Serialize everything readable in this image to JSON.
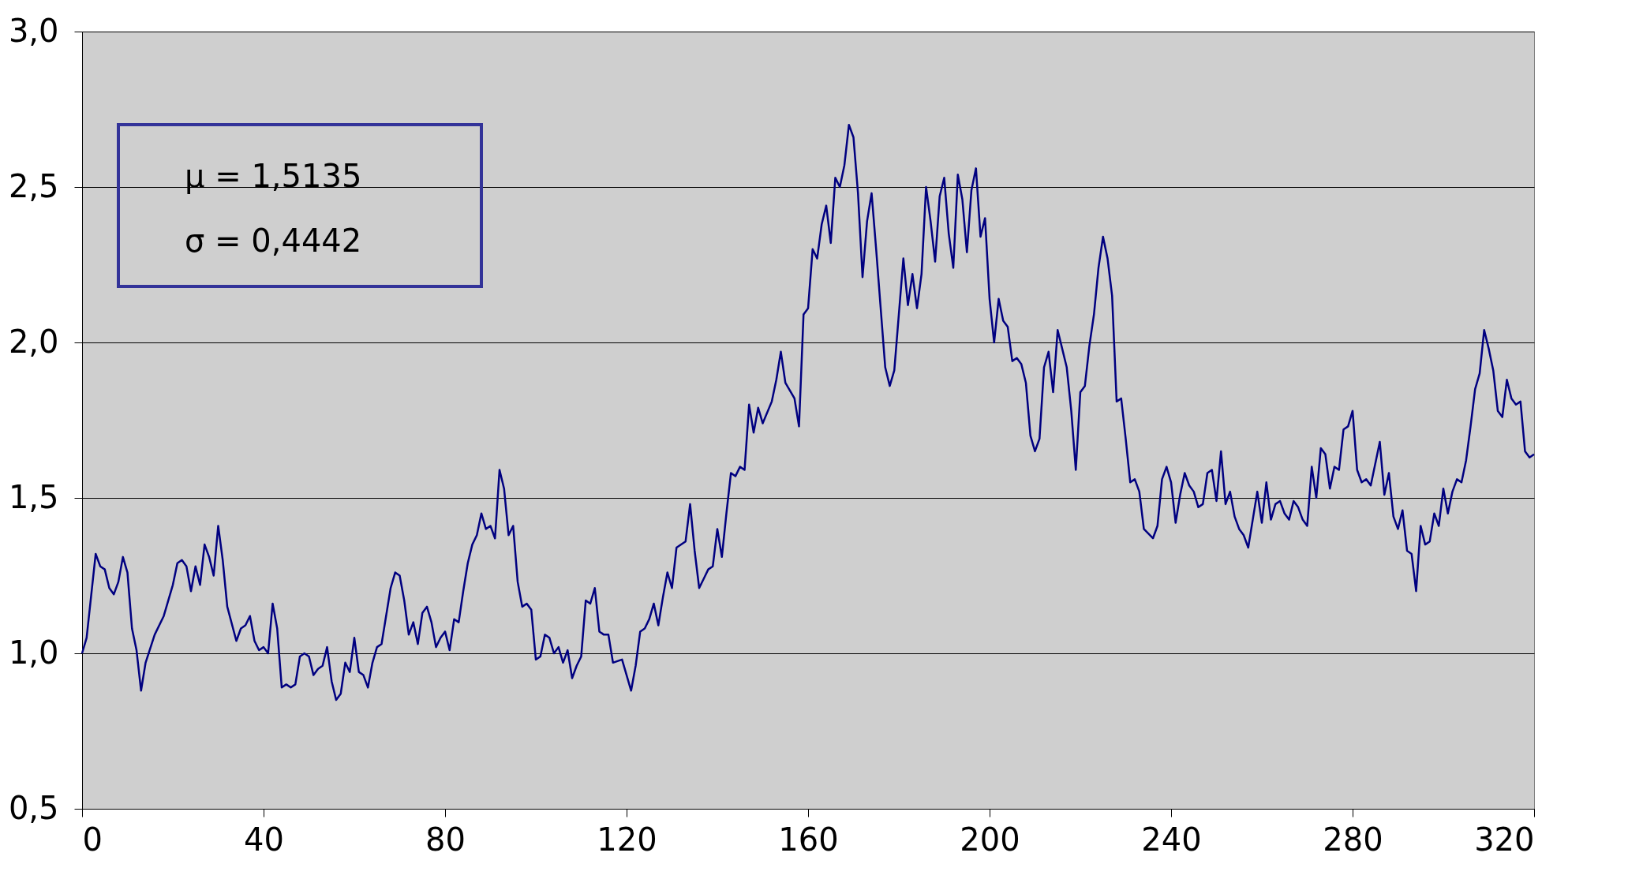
{
  "chart_data": {
    "type": "line",
    "x": [
      0,
      1,
      3,
      4,
      5,
      6,
      7,
      8,
      9,
      10,
      11,
      12,
      13,
      14,
      16,
      18,
      20,
      21,
      22,
      23,
      24,
      25,
      26,
      27,
      28,
      29,
      30,
      31,
      32,
      34,
      35,
      36,
      37,
      38,
      39,
      40,
      41,
      42,
      43,
      44,
      45,
      46,
      47,
      48,
      49,
      50,
      51,
      52,
      53,
      54,
      55,
      56,
      57,
      58,
      59,
      60,
      61,
      62,
      63,
      64,
      65,
      66,
      67,
      68,
      69,
      70,
      71,
      72,
      73,
      74,
      75,
      76,
      77,
      78,
      79,
      80,
      81,
      82,
      83,
      84,
      85,
      86,
      87,
      88,
      89,
      90,
      91,
      92,
      93,
      94,
      95,
      96,
      97,
      98,
      99,
      100,
      101,
      102,
      103,
      104,
      105,
      106,
      107,
      108,
      109,
      110,
      111,
      112,
      113,
      114,
      115,
      116,
      117,
      119,
      121,
      122,
      123,
      124,
      125,
      126,
      127,
      128,
      129,
      130,
      131,
      133,
      134,
      135,
      136,
      137,
      138,
      139,
      140,
      141,
      142,
      143,
      144,
      145,
      146,
      147,
      148,
      149,
      150,
      152,
      153,
      154,
      155,
      157,
      158,
      159,
      160,
      161,
      162,
      163,
      164,
      165,
      166,
      167,
      168,
      169,
      170,
      171,
      172,
      173,
      174,
      175,
      177,
      178,
      179,
      181,
      182,
      183,
      184,
      185,
      186,
      187,
      188,
      189,
      190,
      191,
      192,
      193,
      194,
      195,
      196,
      197,
      198,
      199,
      200,
      201,
      202,
      203,
      204,
      205,
      206,
      207,
      208,
      209,
      210,
      211,
      212,
      213,
      214,
      215,
      216,
      217,
      218,
      219,
      220,
      221,
      222,
      223,
      224,
      225,
      226,
      227,
      228,
      229,
      230,
      231,
      232,
      233,
      234,
      236,
      237,
      238,
      239,
      240,
      241,
      242,
      243,
      244,
      245,
      246,
      247,
      248,
      249,
      250,
      251,
      252,
      253,
      254,
      255,
      256,
      257,
      259,
      260,
      261,
      262,
      263,
      264,
      265,
      266,
      267,
      268,
      269,
      270,
      271,
      272,
      273,
      274,
      275,
      276,
      277,
      278,
      279,
      280,
      281,
      282,
      283,
      284,
      286,
      287,
      288,
      289,
      290,
      291,
      292,
      293,
      294,
      295,
      296,
      297,
      298,
      299,
      300,
      301,
      302,
      303,
      304,
      305,
      306,
      307,
      308,
      309,
      310,
      311,
      312,
      313,
      314,
      315,
      316,
      317,
      318,
      319,
      320
    ],
    "series": [
      {
        "color": "#000080",
        "values": [
          1.0,
          1.05,
          1.32,
          1.28,
          1.27,
          1.21,
          1.19,
          1.23,
          1.31,
          1.26,
          1.08,
          1.01,
          0.88,
          0.97,
          1.06,
          1.12,
          1.22,
          1.29,
          1.3,
          1.28,
          1.2,
          1.28,
          1.22,
          1.35,
          1.31,
          1.25,
          1.41,
          1.3,
          1.15,
          1.04,
          1.08,
          1.09,
          1.12,
          1.04,
          1.01,
          1.02,
          1.0,
          1.16,
          1.08,
          0.89,
          0.9,
          0.89,
          0.9,
          0.99,
          1.0,
          0.99,
          0.93,
          0.95,
          0.96,
          1.02,
          0.91,
          0.85,
          0.87,
          0.97,
          0.94,
          1.05,
          0.94,
          0.93,
          0.89,
          0.97,
          1.02,
          1.03,
          1.12,
          1.21,
          1.26,
          1.25,
          1.17,
          1.06,
          1.1,
          1.03,
          1.13,
          1.15,
          1.1,
          1.02,
          1.05,
          1.07,
          1.01,
          1.11,
          1.1,
          1.2,
          1.29,
          1.35,
          1.38,
          1.45,
          1.4,
          1.41,
          1.37,
          1.59,
          1.53,
          1.38,
          1.41,
          1.23,
          1.15,
          1.16,
          1.14,
          0.98,
          0.99,
          1.06,
          1.05,
          1.0,
          1.02,
          0.97,
          1.01,
          0.92,
          0.96,
          0.99,
          1.17,
          1.16,
          1.21,
          1.07,
          1.06,
          1.06,
          0.97,
          0.98,
          0.88,
          0.96,
          1.07,
          1.08,
          1.11,
          1.16,
          1.09,
          1.18,
          1.26,
          1.21,
          1.34,
          1.36,
          1.48,
          1.33,
          1.21,
          1.24,
          1.27,
          1.28,
          1.4,
          1.31,
          1.45,
          1.58,
          1.57,
          1.6,
          1.59,
          1.8,
          1.71,
          1.79,
          1.74,
          1.81,
          1.88,
          1.97,
          1.87,
          1.82,
          1.73,
          2.09,
          2.11,
          2.3,
          2.27,
          2.38,
          2.44,
          2.32,
          2.53,
          2.5,
          2.57,
          2.7,
          2.66,
          2.48,
          2.21,
          2.39,
          2.48,
          2.3,
          1.92,
          1.86,
          1.91,
          2.27,
          2.12,
          2.22,
          2.11,
          2.22,
          2.5,
          2.39,
          2.26,
          2.47,
          2.53,
          2.35,
          2.24,
          2.54,
          2.46,
          2.29,
          2.49,
          2.56,
          2.34,
          2.4,
          2.14,
          2.0,
          2.14,
          2.07,
          2.05,
          1.94,
          1.95,
          1.93,
          1.87,
          1.7,
          1.65,
          1.69,
          1.92,
          1.97,
          1.84,
          2.04,
          1.98,
          1.92,
          1.78,
          1.59,
          1.84,
          1.86,
          1.99,
          2.09,
          2.24,
          2.34,
          2.27,
          2.15,
          1.81,
          1.82,
          1.69,
          1.55,
          1.56,
          1.52,
          1.4,
          1.37,
          1.41,
          1.56,
          1.6,
          1.55,
          1.42,
          1.51,
          1.58,
          1.54,
          1.52,
          1.47,
          1.48,
          1.58,
          1.59,
          1.49,
          1.65,
          1.48,
          1.52,
          1.44,
          1.4,
          1.38,
          1.34,
          1.52,
          1.42,
          1.55,
          1.43,
          1.48,
          1.49,
          1.45,
          1.43,
          1.49,
          1.47,
          1.43,
          1.41,
          1.6,
          1.5,
          1.66,
          1.64,
          1.53,
          1.6,
          1.59,
          1.72,
          1.73,
          1.78,
          1.59,
          1.55,
          1.56,
          1.54,
          1.68,
          1.51,
          1.58,
          1.44,
          1.4,
          1.46,
          1.33,
          1.32,
          1.2,
          1.41,
          1.35,
          1.36,
          1.45,
          1.41,
          1.53,
          1.45,
          1.52,
          1.56,
          1.55,
          1.62,
          1.73,
          1.85,
          1.9,
          2.04,
          1.98,
          1.91,
          1.78,
          1.76,
          1.88,
          1.82,
          1.8,
          1.81,
          1.65,
          1.63,
          1.64
        ]
      }
    ],
    "xlim": [
      0,
      320
    ],
    "xticks": [
      0,
      40,
      80,
      120,
      160,
      200,
      240,
      280,
      320
    ],
    "ylim": [
      0.5,
      3.0
    ],
    "yticks": [
      {
        "value": 0.5,
        "label": "0,5"
      },
      {
        "value": 1.0,
        "label": "1,0"
      },
      {
        "value": 1.5,
        "label": "1,5"
      },
      {
        "value": 2.0,
        "label": "2,0"
      },
      {
        "value": 2.5,
        "label": "2,5"
      },
      {
        "value": 3.0,
        "label": "3,0"
      }
    ],
    "grid": "y",
    "marker": "none",
    "line_style": "solid",
    "annotations": [
      "μ = 1,5135",
      "σ = 0,4442"
    ]
  }
}
